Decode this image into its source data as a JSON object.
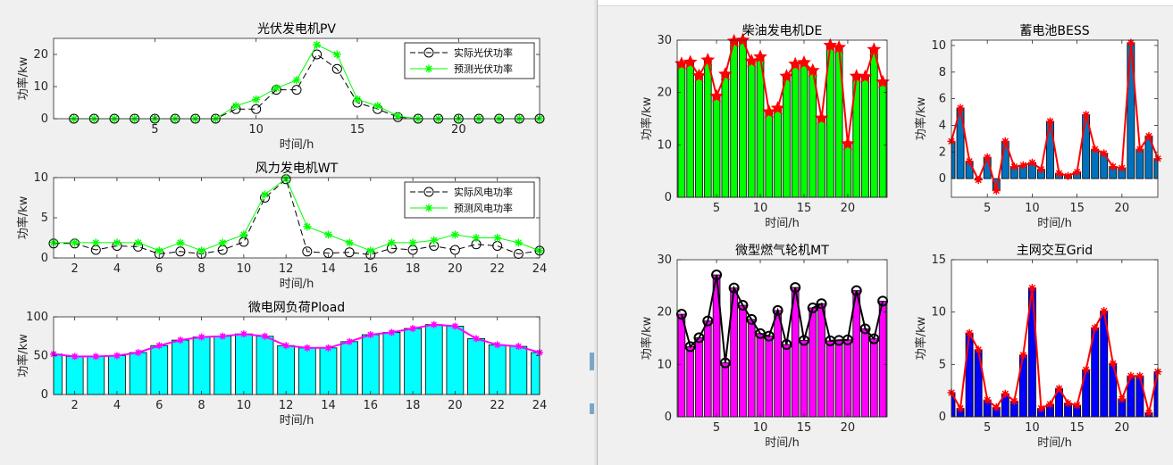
{
  "colors": {
    "frame_bg": "#f0f0f0",
    "axes_bg": "#ffffff",
    "pv_actual": "#000000",
    "pv_forecast": "#00ff00",
    "load_bar": "#00ffff",
    "load_line": "#ff00ff",
    "de_bar": "#00ff00",
    "de_line": "#ff0000",
    "bess_bar": "#0072bd",
    "mt_bar": "#ff00ff",
    "mt_line": "#000000",
    "grid_bar": "#0000ff",
    "grid_line": "#ff0000"
  },
  "chart_data": [
    {
      "id": "pv",
      "type": "line",
      "title": "光伏发电机PV",
      "xlabel": "时间/h",
      "ylabel": "功率/kw",
      "xlim": [
        0,
        24
      ],
      "ylim": [
        0,
        25
      ],
      "xticks": [
        5,
        10,
        15,
        20
      ],
      "yticks": [
        0,
        10,
        20
      ],
      "legend_position": "top-right",
      "x": [
        1,
        2,
        3,
        4,
        5,
        6,
        7,
        8,
        9,
        10,
        11,
        12,
        13,
        14,
        15,
        16,
        17,
        18,
        19,
        20,
        21,
        22,
        23,
        24
      ],
      "series": [
        {
          "name": "实际光伏功率",
          "marker": "circle",
          "dash": true,
          "values": [
            0,
            0,
            0,
            0,
            0,
            0,
            0,
            0,
            3,
            3,
            9,
            9,
            20,
            15.5,
            5,
            3,
            0.5,
            0,
            0,
            0,
            0,
            0,
            0,
            0
          ]
        },
        {
          "name": "预测光伏功率",
          "marker": "star",
          "dash": false,
          "values": [
            0,
            0,
            0,
            0,
            0,
            0,
            0,
            0,
            4,
            6,
            9.5,
            12,
            23,
            20,
            6,
            4,
            0.8,
            0,
            0,
            0,
            0,
            0,
            0,
            0
          ]
        }
      ]
    },
    {
      "id": "wt",
      "type": "line",
      "title": "风力发电机WT",
      "xlabel": "时间/h",
      "ylabel": "功率/kw",
      "xlim": [
        1,
        24
      ],
      "ylim": [
        0,
        10
      ],
      "xticks": [
        2,
        4,
        6,
        8,
        10,
        12,
        14,
        16,
        18,
        20,
        22,
        24
      ],
      "yticks": [
        0,
        5,
        10
      ],
      "legend_position": "top-right",
      "x": [
        1,
        2,
        3,
        4,
        5,
        6,
        7,
        8,
        9,
        10,
        11,
        12,
        13,
        14,
        15,
        16,
        17,
        18,
        19,
        20,
        21,
        22,
        23,
        24
      ],
      "series": [
        {
          "name": "实际风电功率",
          "marker": "circle",
          "dash": true,
          "values": [
            1.8,
            1.8,
            1.0,
            1.5,
            1.4,
            0.5,
            0.8,
            0.5,
            1.0,
            2.0,
            7.5,
            9.8,
            0.8,
            0.6,
            0.7,
            0.4,
            1.2,
            1.0,
            1.5,
            1.0,
            1.7,
            1.5,
            0.5,
            0.9
          ]
        },
        {
          "name": "预测风电功率",
          "marker": "star",
          "dash": false,
          "values": [
            1.9,
            1.9,
            1.9,
            1.9,
            1.9,
            0.9,
            1.9,
            0.9,
            1.9,
            2.9,
            7.9,
            9.9,
            3.9,
            2.9,
            1.9,
            0.9,
            1.9,
            1.9,
            2.2,
            2.9,
            2.5,
            2.5,
            1.9,
            0.9
          ]
        }
      ]
    },
    {
      "id": "load",
      "type": "bar",
      "title": "微电网负荷Pload",
      "xlabel": "时间/h",
      "ylabel": "功率/kw",
      "xlim": [
        1,
        24
      ],
      "ylim": [
        0,
        100
      ],
      "xticks": [
        2,
        4,
        6,
        8,
        10,
        12,
        14,
        16,
        18,
        20,
        22,
        24
      ],
      "yticks": [
        0,
        50,
        100
      ],
      "x": [
        1,
        2,
        3,
        4,
        5,
        6,
        7,
        8,
        9,
        10,
        11,
        12,
        13,
        14,
        15,
        16,
        17,
        18,
        19,
        20,
        21,
        22,
        23,
        24
      ],
      "values": [
        52,
        49,
        49,
        50,
        54,
        63,
        70,
        74,
        75,
        78,
        75,
        63,
        60,
        60,
        68,
        77,
        80,
        85,
        90,
        88,
        72,
        64,
        62,
        54
      ]
    },
    {
      "id": "de",
      "type": "bar",
      "title": "柴油发电机DE",
      "xlabel": "时间/h",
      "ylabel": "功率/kw",
      "xlim": [
        0.5,
        24.5
      ],
      "ylim": [
        0,
        30
      ],
      "xticks": [
        5,
        10,
        15,
        20
      ],
      "yticks": [
        0,
        10,
        20,
        30
      ],
      "x": [
        1,
        2,
        3,
        4,
        5,
        6,
        7,
        8,
        9,
        10,
        11,
        12,
        13,
        14,
        15,
        16,
        17,
        18,
        19,
        20,
        21,
        22,
        23,
        24
      ],
      "values": [
        25.5,
        25.8,
        23.2,
        26.2,
        19.3,
        23.5,
        29.8,
        30,
        26,
        26.8,
        16.3,
        17,
        23.1,
        25.4,
        25.7,
        24.2,
        15.1,
        29,
        28.6,
        10.2,
        23.1,
        23,
        28.2,
        22
      ]
    },
    {
      "id": "bess",
      "type": "bar",
      "title": "蓄电池BESS",
      "xlabel": "时间/h",
      "ylabel": "功率/kw",
      "xlim": [
        1,
        24
      ],
      "ylim": [
        -1.4,
        10.4
      ],
      "xticks": [
        5,
        10,
        15,
        20
      ],
      "yticks": [
        0,
        2,
        4,
        6,
        8,
        10
      ],
      "x": [
        1,
        2,
        3,
        4,
        5,
        6,
        7,
        8,
        9,
        10,
        11,
        12,
        13,
        14,
        15,
        16,
        17,
        18,
        19,
        20,
        21,
        22,
        23,
        24
      ],
      "values": [
        2.8,
        5.3,
        1.3,
        -0.1,
        1.6,
        -0.9,
        2.8,
        0.9,
        1.0,
        1.2,
        0.7,
        4.3,
        0.4,
        0.2,
        0.5,
        4.8,
        2.2,
        1.9,
        0.9,
        0.8,
        10.2,
        2.2,
        3.2,
        1.5
      ]
    },
    {
      "id": "mt",
      "type": "bar",
      "title": "微型燃气轮机MT",
      "xlabel": "时间/h",
      "ylabel": "功率/kw",
      "xlim": [
        0.5,
        24.5
      ],
      "ylim": [
        0,
        30
      ],
      "xticks": [
        5,
        10,
        15,
        20
      ],
      "yticks": [
        0,
        10,
        20,
        30
      ],
      "x": [
        1,
        2,
        3,
        4,
        5,
        6,
        7,
        8,
        9,
        10,
        11,
        12,
        13,
        14,
        15,
        16,
        17,
        18,
        19,
        20,
        21,
        22,
        23,
        24
      ],
      "values": [
        19.6,
        13.4,
        15.1,
        18.3,
        27.1,
        10.3,
        24.6,
        21.3,
        18.6,
        15.9,
        15.4,
        20.3,
        13.8,
        24.7,
        14.6,
        20.8,
        21.6,
        14.5,
        14.6,
        14.7,
        24.1,
        16.8,
        14.9,
        22.1
      ]
    },
    {
      "id": "grid",
      "type": "bar",
      "title": "主网交互Grid",
      "xlabel": "时间/h",
      "ylabel": "功率/kw",
      "xlim": [
        1,
        24
      ],
      "ylim": [
        0,
        15
      ],
      "xticks": [
        5,
        10,
        15,
        20
      ],
      "yticks": [
        0,
        5,
        10,
        15
      ],
      "x": [
        1,
        2,
        3,
        4,
        5,
        6,
        7,
        8,
        9,
        10,
        11,
        12,
        13,
        14,
        15,
        16,
        17,
        18,
        19,
        20,
        21,
        22,
        23,
        24
      ],
      "values": [
        2.3,
        0.8,
        8.0,
        6.4,
        1.6,
        0.9,
        2.2,
        1.5,
        5.9,
        12.3,
        0.8,
        1.2,
        2.7,
        1.3,
        1.1,
        4.5,
        8.5,
        10.1,
        5.1,
        1.7,
        3.9,
        3.9,
        0.4,
        4.3
      ]
    }
  ]
}
